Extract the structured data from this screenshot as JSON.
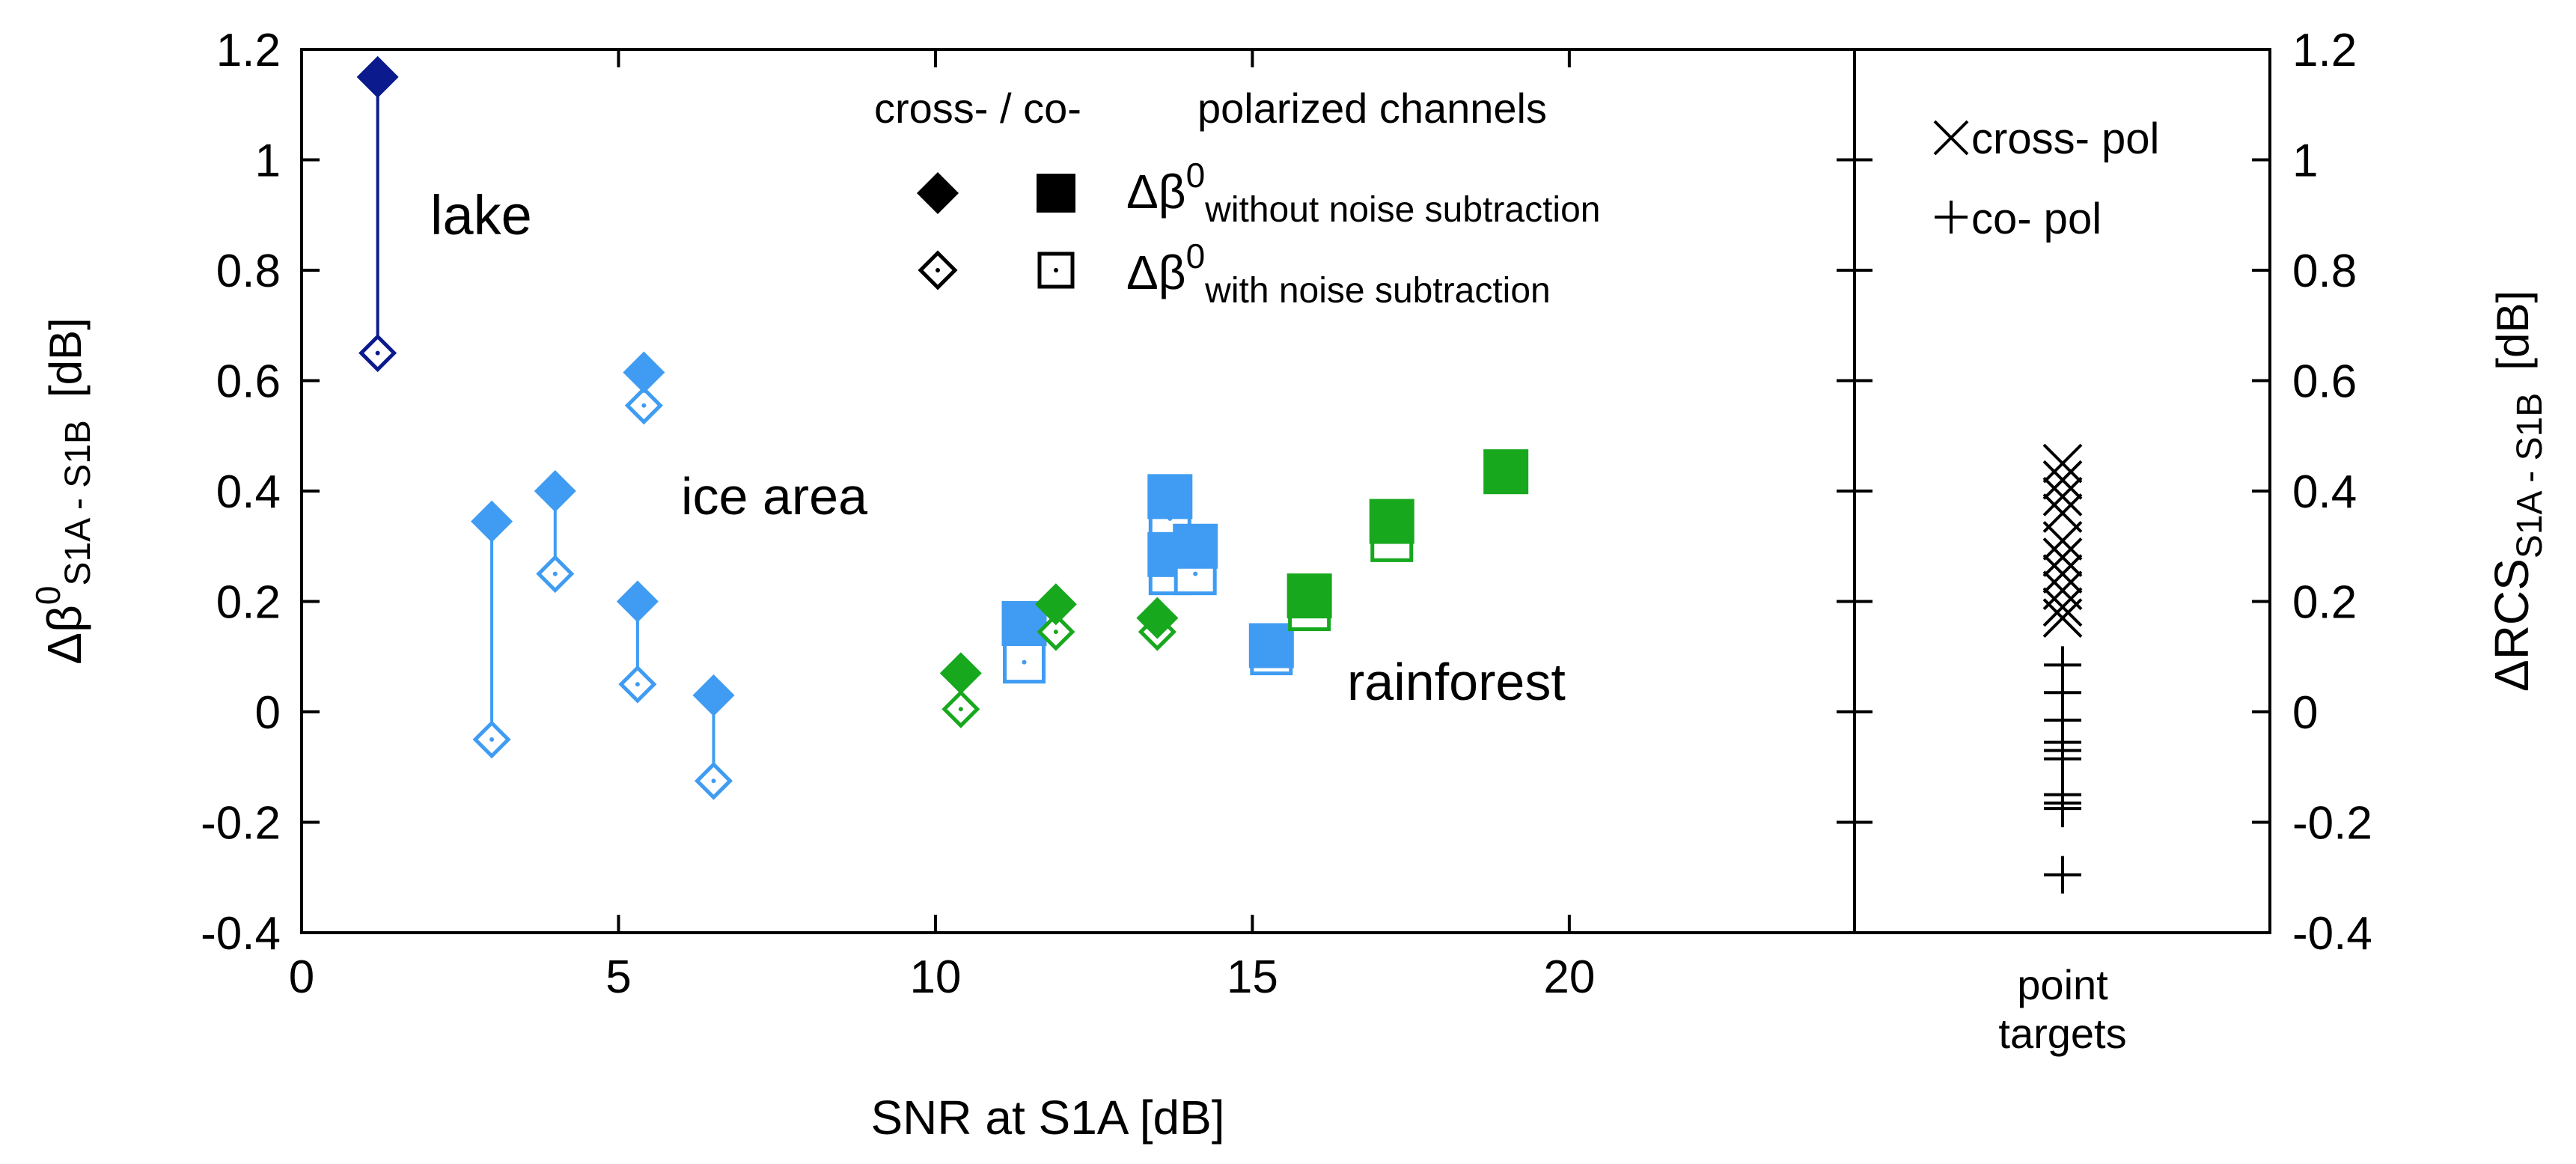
{
  "colors": {
    "lake": "#0b1a8c",
    "ice": "#3f9cf2",
    "rainforest": "#17a81e",
    "axis": "#000000"
  },
  "chart_data": {
    "type": "scatter",
    "xlabel": "SNR at S1A [dB]",
    "ylabel_main": "Δβ",
    "ylabel_sup": "0",
    "ylabel_sub": "S1A - S1B",
    "ylabel_unit": "[dB]",
    "y2label_main": "ΔRCS",
    "y2label_sub": "S1A - S1B",
    "y2label_unit": "[dB]",
    "xlim": [
      0,
      24.5
    ],
    "ylim": [
      -0.4,
      1.2
    ],
    "x_ticks": [
      "0",
      "5",
      "10",
      "15",
      "20"
    ],
    "y_ticks": [
      "-0.4",
      "-0.2",
      "0",
      "0.2",
      "0.4",
      "0.6",
      "0.8",
      "1",
      "1.2"
    ],
    "y2_ticks": [
      "-0.4",
      "-0.2",
      "0",
      "0.2",
      "0.4",
      "0.6",
      "0.8",
      "1",
      "1.2"
    ],
    "right_panel_label_line1": "point",
    "right_panel_label_line2": "targets",
    "legend": {
      "title_left": "cross- / co-",
      "title_right": "polarized channels",
      "without_main": "Δβ",
      "without_sup": "0",
      "without_sub": "without noise subtraction",
      "with_main": "Δβ",
      "with_sup": "0",
      "with_sub": "with noise subtraction"
    },
    "right_legend": {
      "cross_label": "cross- pol",
      "co_label": "co- pol"
    },
    "region_labels": {
      "lake": "lake",
      "ice": "ice area",
      "rainforest": "rainforest"
    },
    "series": [
      {
        "name": "lake",
        "color_key": "lake",
        "points": [
          {
            "x": 1.2,
            "without": 1.15,
            "with": 0.65,
            "marker": "diamond",
            "connector": true
          }
        ]
      },
      {
        "name": "ice area",
        "color_key": "ice",
        "points": [
          {
            "x": 3.0,
            "without": 0.345,
            "with": -0.05,
            "marker": "diamond",
            "connector": true
          },
          {
            "x": 4.0,
            "without": 0.4,
            "with": 0.25,
            "marker": "diamond",
            "connector": true
          },
          {
            "x": 5.4,
            "without": 0.615,
            "with": 0.555,
            "marker": "diamond",
            "connector": false
          },
          {
            "x": 5.3,
            "without": 0.2,
            "with": 0.05,
            "marker": "diamond",
            "connector": true
          },
          {
            "x": 6.5,
            "without": 0.03,
            "with": -0.125,
            "marker": "diamond",
            "connector": true
          },
          {
            "x": 11.4,
            "without": 0.16,
            "with": 0.09,
            "marker": "square",
            "connector": false
          },
          {
            "x": 13.7,
            "without": 0.39,
            "with": 0.35,
            "marker": "square",
            "connector": false
          },
          {
            "x": 13.7,
            "without": 0.285,
            "with": 0.25,
            "marker": "square",
            "connector": false
          },
          {
            "x": 14.1,
            "without": 0.3,
            "with": 0.25,
            "marker": "square",
            "connector": false
          },
          {
            "x": 15.3,
            "without": 0.12,
            "with": 0.105,
            "marker": "square",
            "connector": false
          }
        ]
      },
      {
        "name": "rainforest",
        "color_key": "rainforest",
        "points": [
          {
            "x": 10.4,
            "without": 0.07,
            "with": 0.005,
            "marker": "diamond",
            "connector": false
          },
          {
            "x": 11.9,
            "without": 0.195,
            "with": 0.145,
            "marker": "diamond",
            "connector": false
          },
          {
            "x": 13.5,
            "without": 0.17,
            "with": 0.145,
            "marker": "diamond",
            "connector": false
          },
          {
            "x": 15.9,
            "without": 0.21,
            "with": 0.185,
            "marker": "square",
            "connector": false
          },
          {
            "x": 17.2,
            "without": 0.345,
            "with": 0.31,
            "marker": "square",
            "connector": false
          },
          {
            "x": 19.0,
            "without": 0.435,
            "with": 0.435,
            "marker": "square",
            "connector": false
          }
        ]
      }
    ],
    "point_targets": {
      "cross_pol": [
        0.45,
        0.42,
        0.39,
        0.36,
        0.31,
        0.28,
        0.25,
        0.22,
        0.19,
        0.17
      ],
      "co_pol": [
        0.085,
        0.035,
        -0.015,
        -0.055,
        -0.07,
        -0.085,
        -0.15,
        -0.165,
        -0.175,
        -0.295
      ]
    }
  }
}
